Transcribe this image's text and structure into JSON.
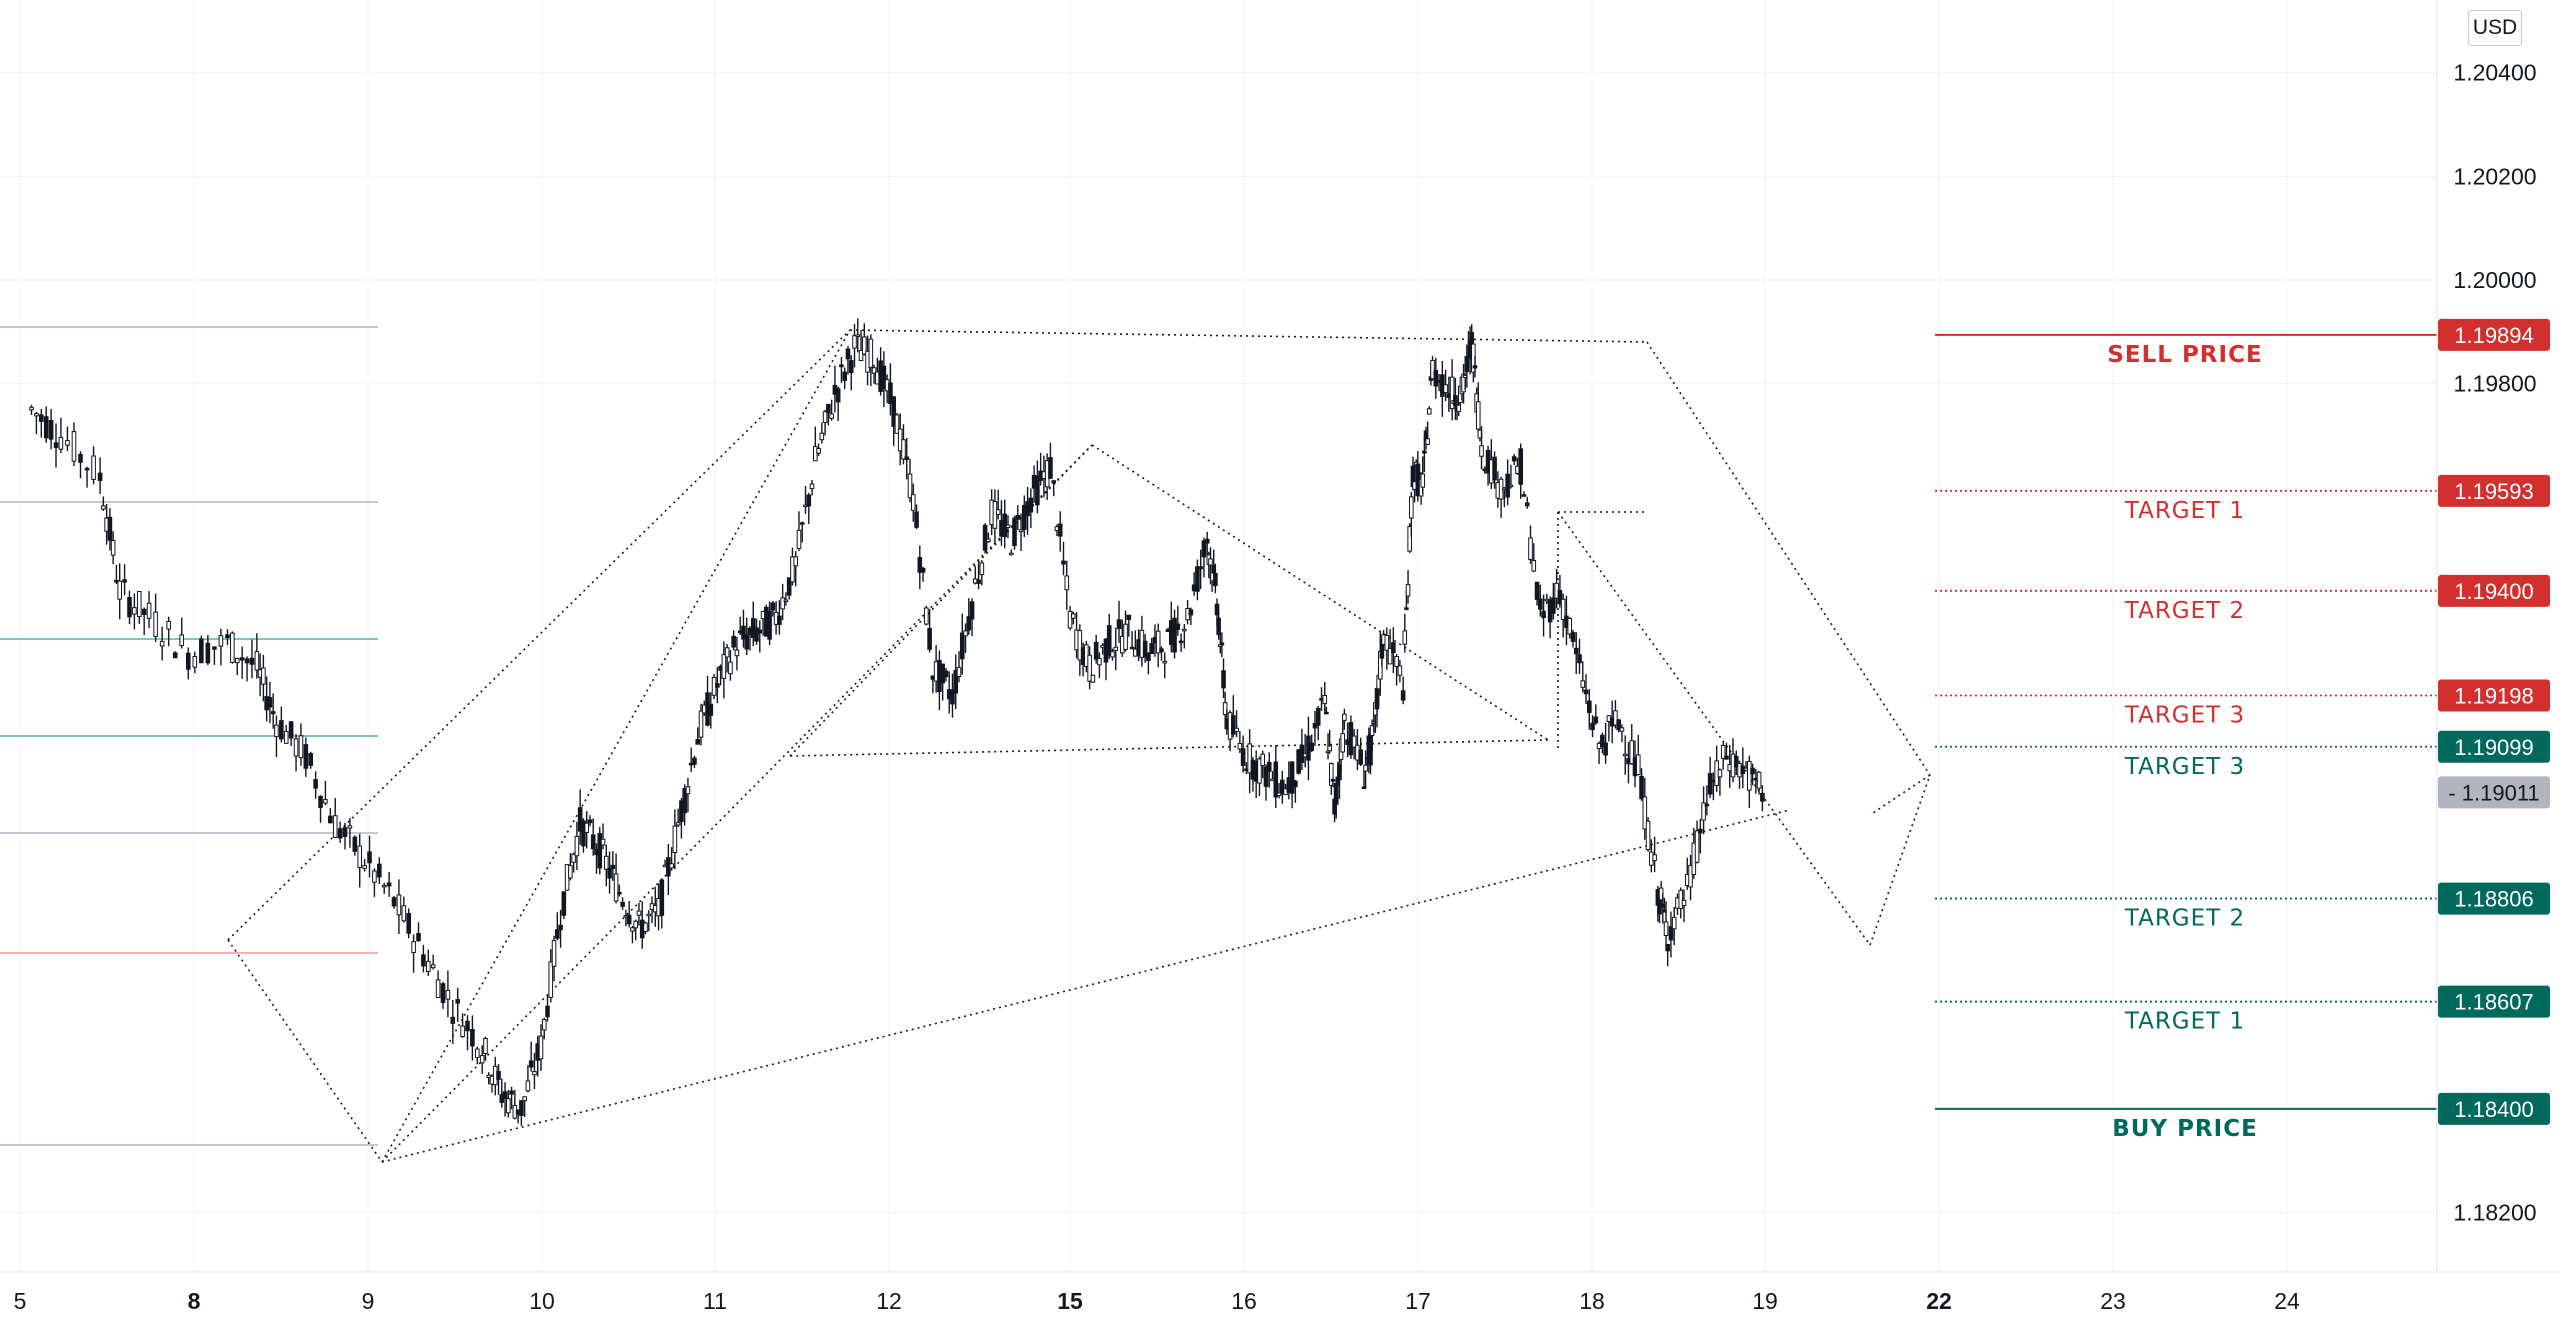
{
  "currency_button": "USD",
  "chart_data": {
    "type": "candlestick",
    "price_axis": {
      "ticks": [
        "1.20400",
        "1.20200",
        "1.20000",
        "1.19800",
        "1.18200"
      ],
      "range": [
        1.1812,
        1.2044
      ]
    },
    "time_axis": {
      "ticks": [
        {
          "label": "5",
          "bold": false
        },
        {
          "label": "8",
          "bold": true
        },
        {
          "label": "9",
          "bold": false
        },
        {
          "label": "10",
          "bold": false
        },
        {
          "label": "11",
          "bold": false
        },
        {
          "label": "12",
          "bold": false
        },
        {
          "label": "15",
          "bold": true
        },
        {
          "label": "16",
          "bold": false
        },
        {
          "label": "17",
          "bold": false
        },
        {
          "label": "18",
          "bold": false
        },
        {
          "label": "19",
          "bold": false
        },
        {
          "label": "22",
          "bold": true
        },
        {
          "label": "23",
          "bold": false
        },
        {
          "label": "24",
          "bold": false
        }
      ]
    },
    "levels": [
      {
        "label": "SELL PRICE",
        "price": "1.19894",
        "color": "#d32f2f",
        "bold": true,
        "style": "solid"
      },
      {
        "label": "TARGET 1",
        "price": "1.19593",
        "color": "#d32f2f",
        "bold": false,
        "style": "dotted"
      },
      {
        "label": "TARGET 2",
        "price": "1.19400",
        "color": "#d32f2f",
        "bold": false,
        "style": "dotted"
      },
      {
        "label": "TARGET 3",
        "price": "1.19198",
        "color": "#d32f2f",
        "bold": false,
        "style": "dotted"
      },
      {
        "label": "TARGET 3",
        "price": "1.19099",
        "color": "#00695c",
        "bold": false,
        "style": "dotted"
      },
      {
        "label": "TARGET 2",
        "price": "1.18806",
        "color": "#00695c",
        "bold": false,
        "style": "dotted"
      },
      {
        "label": "TARGET 1",
        "price": "1.18607",
        "color": "#00695c",
        "bold": false,
        "style": "dotted"
      },
      {
        "label": "BUY PRICE",
        "price": "1.18400",
        "color": "#00695c",
        "bold": true,
        "style": "solid"
      }
    ],
    "last_price": {
      "price": "1.19011",
      "color": "#b2b5be"
    },
    "price_path": [
      [
        5.0,
        1.1975
      ],
      [
        5.15,
        1.197
      ],
      [
        5.35,
        1.1962
      ],
      [
        5.45,
        1.194
      ],
      [
        5.6,
        1.1935
      ],
      [
        5.8,
        1.1928
      ],
      [
        6.0,
        1.193
      ],
      [
        6.15,
        1.1925
      ],
      [
        6.25,
        1.1915
      ],
      [
        6.4,
        1.1908
      ],
      [
        6.55,
        1.1895
      ],
      [
        6.7,
        1.1888
      ],
      [
        6.85,
        1.188
      ],
      [
        7.0,
        1.187
      ],
      [
        7.15,
        1.186
      ],
      [
        7.3,
        1.1852
      ],
      [
        7.4,
        1.1843
      ],
      [
        7.5,
        1.184
      ],
      [
        7.6,
        1.1852
      ],
      [
        7.7,
        1.1878
      ],
      [
        7.8,
        1.1895
      ],
      [
        7.9,
        1.189
      ],
      [
        8.0,
        1.1882
      ],
      [
        8.1,
        1.1875
      ],
      [
        8.2,
        1.1878
      ],
      [
        8.3,
        1.1895
      ],
      [
        8.4,
        1.1912
      ],
      [
        8.5,
        1.1922
      ],
      [
        8.6,
        1.193
      ],
      [
        8.7,
        1.1932
      ],
      [
        8.8,
        1.1935
      ],
      [
        8.9,
        1.1945
      ],
      [
        9.0,
        1.1965
      ],
      [
        9.1,
        1.1978
      ],
      [
        9.2,
        1.1987
      ],
      [
        9.3,
        1.1985
      ],
      [
        9.4,
        1.1975
      ],
      [
        9.5,
        1.1958
      ],
      [
        9.6,
        1.1925
      ],
      [
        9.7,
        1.192
      ],
      [
        9.8,
        1.1938
      ],
      [
        9.9,
        1.1955
      ],
      [
        10.0,
        1.195
      ],
      [
        10.1,
        1.1958
      ],
      [
        10.2,
        1.1964
      ],
      [
        10.3,
        1.1935
      ],
      [
        10.4,
        1.1925
      ],
      [
        10.5,
        1.193
      ],
      [
        10.6,
        1.1932
      ],
      [
        10.7,
        1.1928
      ],
      [
        10.8,
        1.193
      ],
      [
        10.9,
        1.1935
      ],
      [
        11.0,
        1.195
      ],
      [
        11.05,
        1.1938
      ],
      [
        11.1,
        1.1915
      ],
      [
        11.2,
        1.1908
      ],
      [
        11.3,
        1.1905
      ],
      [
        11.4,
        1.1902
      ],
      [
        11.5,
        1.1908
      ],
      [
        11.6,
        1.1918
      ],
      [
        11.65,
        1.1898
      ],
      [
        11.7,
        1.1915
      ],
      [
        11.8,
        1.1905
      ],
      [
        11.85,
        1.1912
      ],
      [
        11.9,
        1.1932
      ],
      [
        12.0,
        1.1922
      ],
      [
        12.05,
        1.1963
      ],
      [
        12.1,
        1.196
      ],
      [
        12.15,
        1.1983
      ],
      [
        12.25,
        1.1978
      ],
      [
        12.3,
        1.1978
      ],
      [
        12.35,
        1.1988
      ],
      [
        12.4,
        1.1968
      ],
      [
        12.5,
        1.196
      ],
      [
        12.6,
        1.1964
      ],
      [
        12.7,
        1.1935
      ],
      [
        12.8,
        1.194
      ],
      [
        12.9,
        1.1925
      ],
      [
        13.0,
        1.191
      ],
      [
        13.1,
        1.1915
      ],
      [
        13.2,
        1.1905
      ],
      [
        13.3,
        1.1882
      ],
      [
        13.35,
        1.1874
      ],
      [
        13.45,
        1.1882
      ],
      [
        13.55,
        1.19
      ],
      [
        13.65,
        1.1908
      ],
      [
        13.75,
        1.1905
      ],
      [
        13.85,
        1.19
      ]
    ],
    "time_domain": [
      4.88,
      14.75
    ]
  }
}
